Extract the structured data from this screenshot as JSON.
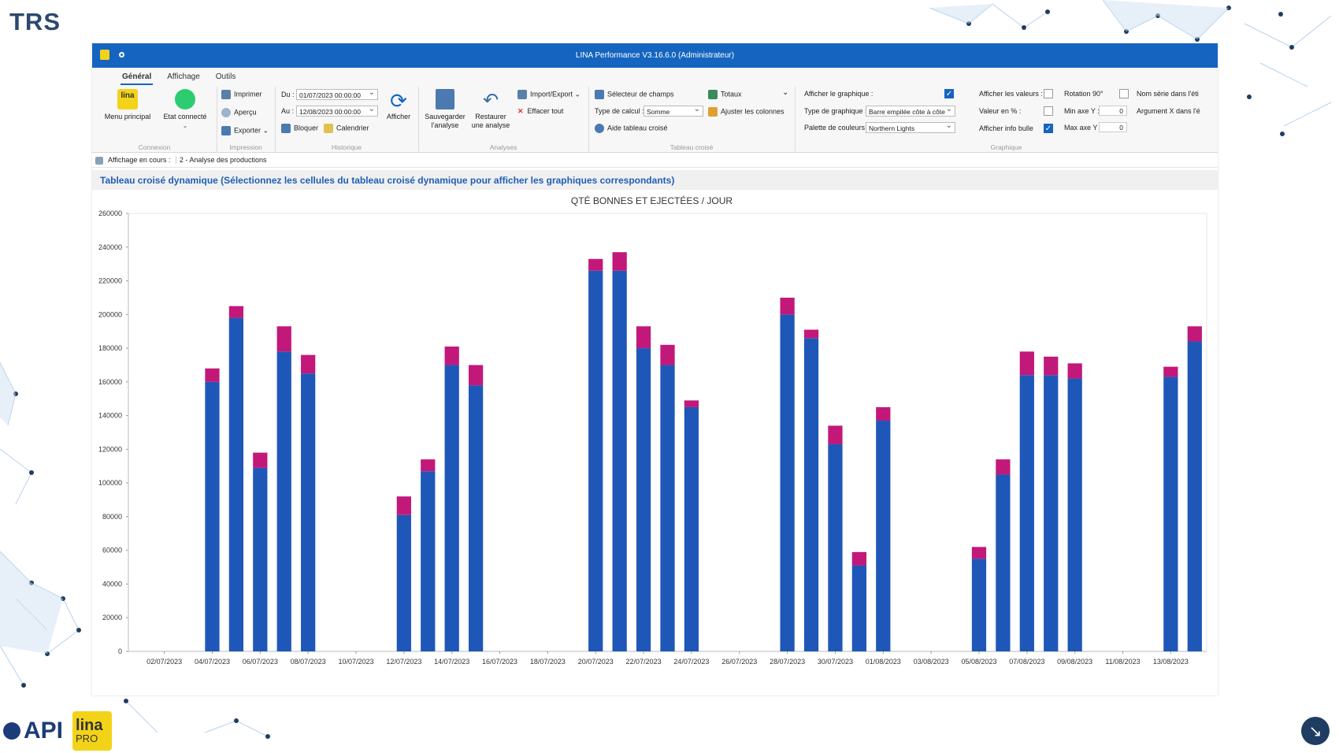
{
  "slide": {
    "title": "TRS"
  },
  "window": {
    "title": "LINA Performance  V3.16.6.0  (Administrateur)"
  },
  "ribbon": {
    "tabs": [
      "Général",
      "Affichage",
      "Outils"
    ],
    "connexion": {
      "menu_label": "Menu principal",
      "state_label": "Etat connecté",
      "group": "Connexion",
      "state_color": "#2ecc71"
    },
    "impression": {
      "print": "Imprimer",
      "preview": "Aperçu",
      "export": "Exporter",
      "group": "Impression"
    },
    "historique": {
      "from_label": "Du :",
      "from_value": "01/07/2023 00:00:00",
      "to_label": "Au :",
      "to_value": "12/08/2023 00:00:00",
      "lock": "Bloquer",
      "calendar": "Calendrier",
      "show": "Afficher",
      "group": "Historique"
    },
    "analyses": {
      "save_l1": "Sauvegarder",
      "save_l2": "l'analyse",
      "restore_l1": "Restaurer",
      "restore_l2": "une analyse",
      "import_export": "Import/Export",
      "clear_all": "Effacer tout",
      "group": "Analyses"
    },
    "tableau": {
      "field_selector": "Sélecteur de champs",
      "totals": "Totaux",
      "calc_label": "Type de calcul :",
      "calc_value": "Somme",
      "adjust_cols": "Ajuster les colonnes",
      "help": "Aide tableau croisé",
      "group": "Tableau croisé"
    },
    "graphique": {
      "show_chart": "Afficher le graphique :",
      "chart_type_label": "Type de graphique :",
      "chart_type_value": "Barre empilée côte à côte",
      "palette_label": "Palette de couleurs :",
      "palette_value": "Northern Lights",
      "show_values": "Afficher les valeurs :",
      "rotation": "Rotation 90°",
      "series_name": "Nom série dans l'éti",
      "value_pct": "Valeur en % :",
      "min_y": "Min axe Y :",
      "min_y_value": "0",
      "arg_x": "Argument X dans l'é",
      "tooltip": "Afficher info bulle",
      "max_y": "Max axe Y :",
      "max_y_value": "0",
      "group": "Graphique"
    }
  },
  "status": {
    "label": "Affichage en cours :",
    "value": "2 - Analyse des productions"
  },
  "banner": "Tableau croisé dynamique (Sélectionnez les cellules du tableau croisé dynamique pour afficher les graphiques correspondants)",
  "chart_data": {
    "type": "bar",
    "stacked": true,
    "title": "QTÉ BONNES ET EJECTÉES / JOUR",
    "ylim": [
      0,
      260000
    ],
    "yticks": [
      0,
      20000,
      40000,
      60000,
      80000,
      100000,
      120000,
      140000,
      160000,
      180000,
      200000,
      220000,
      240000,
      260000
    ],
    "categories": [
      "01/07/2023",
      "02/07/2023",
      "03/07/2023",
      "04/07/2023",
      "05/07/2023",
      "06/07/2023",
      "07/07/2023",
      "08/07/2023",
      "09/07/2023",
      "10/07/2023",
      "11/07/2023",
      "12/07/2023",
      "13/07/2023",
      "14/07/2023",
      "15/07/2023",
      "16/07/2023",
      "17/07/2023",
      "18/07/2023",
      "19/07/2023",
      "20/07/2023",
      "21/07/2023",
      "22/07/2023",
      "23/07/2023",
      "24/07/2023",
      "25/07/2023",
      "26/07/2023",
      "27/07/2023",
      "28/07/2023",
      "29/07/2023",
      "30/07/2023",
      "31/07/2023",
      "01/08/2023",
      "02/08/2023",
      "03/08/2023",
      "04/08/2023",
      "05/08/2023",
      "06/08/2023",
      "07/08/2023",
      "08/08/2023",
      "09/08/2023",
      "10/08/2023",
      "11/08/2023",
      "12/08/2023",
      "13/08/2023",
      "14/08/2023"
    ],
    "xtick_labels": [
      "02/07/2023",
      "04/07/2023",
      "06/07/2023",
      "08/07/2023",
      "10/07/2023",
      "12/07/2023",
      "14/07/2023",
      "16/07/2023",
      "18/07/2023",
      "20/07/2023",
      "22/07/2023",
      "24/07/2023",
      "26/07/2023",
      "28/07/2023",
      "30/07/2023",
      "01/08/2023",
      "03/08/2023",
      "05/08/2023",
      "07/08/2023",
      "09/08/2023",
      "11/08/2023",
      "13/08/2023"
    ],
    "series": [
      {
        "color": "#1f57b8",
        "values": [
          0,
          0,
          0,
          160000,
          198000,
          109000,
          178000,
          165000,
          0,
          0,
          0,
          81000,
          107000,
          170000,
          158000,
          0,
          0,
          0,
          0,
          226000,
          226000,
          180000,
          170000,
          145000,
          0,
          0,
          0,
          200000,
          186000,
          123000,
          51000,
          137000,
          0,
          0,
          0,
          55000,
          105000,
          164000,
          164000,
          162000,
          0,
          0,
          0,
          163000,
          184000
        ]
      },
      {
        "color": "#c2187a",
        "values": [
          0,
          0,
          0,
          8000,
          7000,
          9000,
          15000,
          11000,
          0,
          0,
          0,
          11000,
          7000,
          11000,
          12000,
          0,
          0,
          0,
          0,
          7000,
          11000,
          13000,
          12000,
          4000,
          0,
          0,
          0,
          10000,
          5000,
          11000,
          8000,
          8000,
          0,
          0,
          0,
          7000,
          9000,
          14000,
          11000,
          9000,
          0,
          0,
          0,
          6000,
          9000
        ]
      }
    ]
  }
}
